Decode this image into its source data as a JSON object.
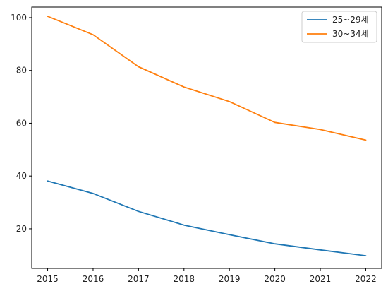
{
  "chart_data": {
    "type": "line",
    "title": "",
    "xlabel": "",
    "ylabel": "",
    "x": [
      2015,
      2016,
      2017,
      2018,
      2019,
      2020,
      2021,
      2022
    ],
    "xticks": [
      "2015",
      "2016",
      "2017",
      "2018",
      "2019",
      "2020",
      "2021",
      "2022"
    ],
    "yticks": [
      "20",
      "40",
      "60",
      "80",
      "100"
    ],
    "ylim": [
      5,
      104
    ],
    "xlim": [
      2014.65,
      2022.35
    ],
    "grid": false,
    "legend_position": "top-right",
    "series": [
      {
        "name": "25~29세",
        "color": "#1f77b4",
        "values": [
          38.1,
          33.4,
          26.6,
          21.4,
          17.8,
          14.3,
          12.0,
          9.8
        ]
      },
      {
        "name": "30~34세",
        "color": "#ff7f0e",
        "values": [
          100.5,
          93.5,
          81.4,
          73.7,
          68.2,
          60.3,
          57.6,
          53.6
        ]
      }
    ]
  }
}
